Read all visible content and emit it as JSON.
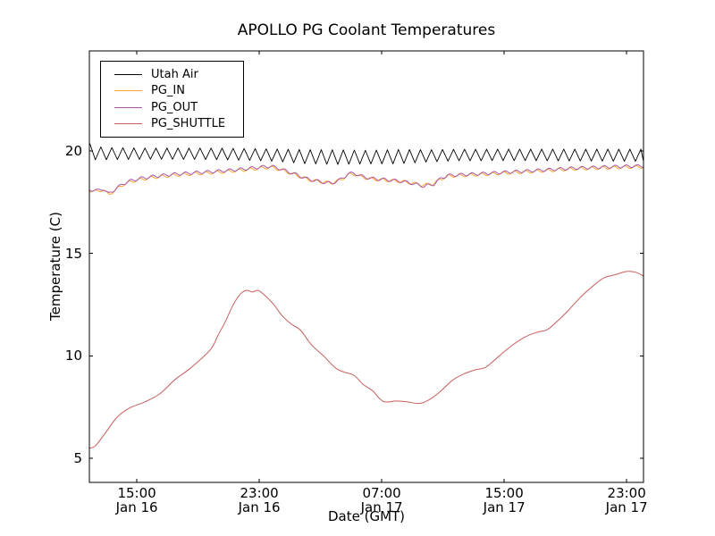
{
  "chart_data": {
    "type": "line",
    "title": "APOLLO PG Coolant Temperatures",
    "xlabel": "Date (GMT)",
    "ylabel": "Temperature (C)",
    "grid": false,
    "legend_position": "upper left",
    "x_axis": {
      "unit": "hours since Jan 16 00:00 GMT",
      "range_hours": [
        11.9,
        48.1
      ],
      "ticks": [
        {
          "t": 15,
          "time": "15:00",
          "date": "Jan 16"
        },
        {
          "t": 23,
          "time": "23:00",
          "date": "Jan 16"
        },
        {
          "t": 31,
          "time": "07:00",
          "date": "Jan 17"
        },
        {
          "t": 39,
          "time": "15:00",
          "date": "Jan 17"
        },
        {
          "t": 47,
          "time": "23:00",
          "date": "Jan 17"
        }
      ]
    },
    "y_axis": {
      "range": [
        3.83,
        24.88
      ],
      "ticks": [
        {
          "v": 5,
          "label": "5"
        },
        {
          "v": 10,
          "label": "10"
        },
        {
          "v": 15,
          "label": "15"
        },
        {
          "v": 20,
          "label": "20"
        }
      ]
    },
    "series": [
      {
        "name": "Utah Air",
        "color": "#000000",
        "width": 0.9,
        "trend": [
          [
            11.9,
            19.95
          ],
          [
            13,
            19.87
          ],
          [
            16,
            19.87
          ],
          [
            20,
            19.86
          ],
          [
            23,
            19.82
          ],
          [
            24.5,
            19.78
          ],
          [
            26,
            19.72
          ],
          [
            28,
            19.7
          ],
          [
            30,
            19.7
          ],
          [
            32,
            19.72
          ],
          [
            34,
            19.76
          ],
          [
            36,
            19.8
          ],
          [
            40,
            19.81
          ],
          [
            44,
            19.8
          ],
          [
            48.1,
            19.79
          ]
        ],
        "oscillation": {
          "shape": "triangle",
          "period_hours": 0.72,
          "phase_peak_t": 11.93,
          "amplitude_keys": [
            [
              11.9,
              0.42
            ],
            [
              12.6,
              0.3
            ],
            [
              16,
              0.27
            ],
            [
              20,
              0.28
            ],
            [
              24,
              0.3
            ],
            [
              26,
              0.34
            ],
            [
              28,
              0.36
            ],
            [
              30,
              0.33
            ],
            [
              32,
              0.35
            ],
            [
              34,
              0.3
            ],
            [
              36,
              0.28
            ],
            [
              40,
              0.28
            ],
            [
              44,
              0.29
            ],
            [
              48.1,
              0.3
            ]
          ]
        }
      },
      {
        "name": "PG_IN",
        "color": "#ffa72b",
        "width": 1,
        "trend": [
          [
            11.9,
            18.08
          ],
          [
            12.4,
            18.02
          ],
          [
            12.8,
            18.12
          ],
          [
            13.15,
            17.86
          ],
          [
            13.6,
            18.1
          ],
          [
            14.1,
            18.36
          ],
          [
            14.6,
            18.5
          ],
          [
            15.3,
            18.62
          ],
          [
            16.2,
            18.72
          ],
          [
            17.5,
            18.82
          ],
          [
            19,
            18.9
          ],
          [
            20.5,
            18.97
          ],
          [
            22,
            19.07
          ],
          [
            23.3,
            19.18
          ],
          [
            23.8,
            19.2
          ],
          [
            24.4,
            19.08
          ],
          [
            25.3,
            18.85
          ],
          [
            26.2,
            18.6
          ],
          [
            27,
            18.5
          ],
          [
            27.7,
            18.44
          ],
          [
            28.3,
            18.58
          ],
          [
            28.8,
            18.84
          ],
          [
            29.2,
            18.88
          ],
          [
            29.6,
            18.75
          ],
          [
            30.3,
            18.63
          ],
          [
            31.2,
            18.58
          ],
          [
            32.2,
            18.52
          ],
          [
            33,
            18.43
          ],
          [
            33.7,
            18.33
          ],
          [
            34.4,
            18.4
          ],
          [
            34.9,
            18.65
          ],
          [
            35.3,
            18.77
          ],
          [
            36.1,
            18.8
          ],
          [
            37.5,
            18.85
          ],
          [
            39,
            18.92
          ],
          [
            40.5,
            18.98
          ],
          [
            42,
            19.05
          ],
          [
            43.5,
            19.12
          ],
          [
            45,
            19.16
          ],
          [
            46.5,
            19.2
          ],
          [
            48.1,
            19.23
          ]
        ],
        "oscillation": {
          "shape": "sine",
          "period_hours": 0.72,
          "amplitude": 0.07,
          "phase": 0.9
        }
      },
      {
        "name": "PG_OUT",
        "color": "#aa55a8",
        "width": 1,
        "trend": [
          [
            11.9,
            18.12
          ],
          [
            12.4,
            18.06
          ],
          [
            12.8,
            18.16
          ],
          [
            13.15,
            17.9
          ],
          [
            13.6,
            18.14
          ],
          [
            14.1,
            18.4
          ],
          [
            14.6,
            18.55
          ],
          [
            15.3,
            18.67
          ],
          [
            16.2,
            18.77
          ],
          [
            17.5,
            18.87
          ],
          [
            19,
            18.95
          ],
          [
            20.5,
            19.02
          ],
          [
            22,
            19.12
          ],
          [
            23.3,
            19.23
          ],
          [
            23.8,
            19.25
          ],
          [
            24.4,
            19.12
          ],
          [
            25.3,
            18.88
          ],
          [
            26.2,
            18.62
          ],
          [
            27,
            18.5
          ],
          [
            27.7,
            18.42
          ],
          [
            28.3,
            18.6
          ],
          [
            28.8,
            18.88
          ],
          [
            29.2,
            18.92
          ],
          [
            29.6,
            18.78
          ],
          [
            30.3,
            18.66
          ],
          [
            31.2,
            18.6
          ],
          [
            32.2,
            18.53
          ],
          [
            33,
            18.42
          ],
          [
            33.7,
            18.28
          ],
          [
            34.4,
            18.38
          ],
          [
            34.9,
            18.68
          ],
          [
            35.3,
            18.8
          ],
          [
            36.1,
            18.84
          ],
          [
            37.5,
            18.89
          ],
          [
            39,
            18.96
          ],
          [
            40.5,
            19.02
          ],
          [
            42,
            19.09
          ],
          [
            43.5,
            19.16
          ],
          [
            45,
            19.2
          ],
          [
            46.5,
            19.24
          ],
          [
            48.1,
            19.27
          ]
        ],
        "oscillation": {
          "shape": "sine",
          "period_hours": 0.72,
          "amplitude": 0.07,
          "phase": 0.0
        }
      },
      {
        "name": "PG_SHUTTLE",
        "color": "#c65f5e",
        "width": 1,
        "smooth": true,
        "trend": [
          [
            11.9,
            5.5
          ],
          [
            12.3,
            5.62
          ],
          [
            13,
            6.3
          ],
          [
            13.7,
            7.0
          ],
          [
            14.5,
            7.45
          ],
          [
            15.5,
            7.75
          ],
          [
            16.5,
            8.15
          ],
          [
            17.5,
            8.85
          ],
          [
            18.5,
            9.4
          ],
          [
            19.8,
            10.3
          ],
          [
            20.3,
            11.0
          ],
          [
            20.8,
            11.7
          ],
          [
            21.3,
            12.5
          ],
          [
            21.8,
            13.05
          ],
          [
            22.2,
            13.2
          ],
          [
            22.55,
            13.12
          ],
          [
            22.9,
            13.2
          ],
          [
            23.3,
            13.0
          ],
          [
            23.9,
            12.55
          ],
          [
            24.5,
            11.95
          ],
          [
            25.1,
            11.55
          ],
          [
            25.7,
            11.25
          ],
          [
            26.4,
            10.55
          ],
          [
            27.2,
            10.0
          ],
          [
            28.0,
            9.4
          ],
          [
            28.6,
            9.2
          ],
          [
            29.2,
            9.05
          ],
          [
            29.8,
            8.6
          ],
          [
            30.4,
            8.3
          ],
          [
            31.1,
            7.78
          ],
          [
            31.9,
            7.8
          ],
          [
            32.6,
            7.77
          ],
          [
            33.4,
            7.68
          ],
          [
            34.0,
            7.82
          ],
          [
            34.8,
            8.25
          ],
          [
            35.6,
            8.8
          ],
          [
            36.3,
            9.1
          ],
          [
            37.1,
            9.32
          ],
          [
            37.8,
            9.45
          ],
          [
            38.6,
            9.95
          ],
          [
            39.4,
            10.45
          ],
          [
            40.3,
            10.9
          ],
          [
            41.1,
            11.15
          ],
          [
            41.8,
            11.28
          ],
          [
            42.4,
            11.65
          ],
          [
            43.1,
            12.15
          ],
          [
            43.9,
            12.8
          ],
          [
            44.7,
            13.35
          ],
          [
            45.5,
            13.8
          ],
          [
            46.2,
            13.95
          ],
          [
            47.0,
            14.12
          ],
          [
            47.6,
            14.08
          ],
          [
            48.1,
            13.9
          ]
        ],
        "oscillation": null
      }
    ]
  }
}
